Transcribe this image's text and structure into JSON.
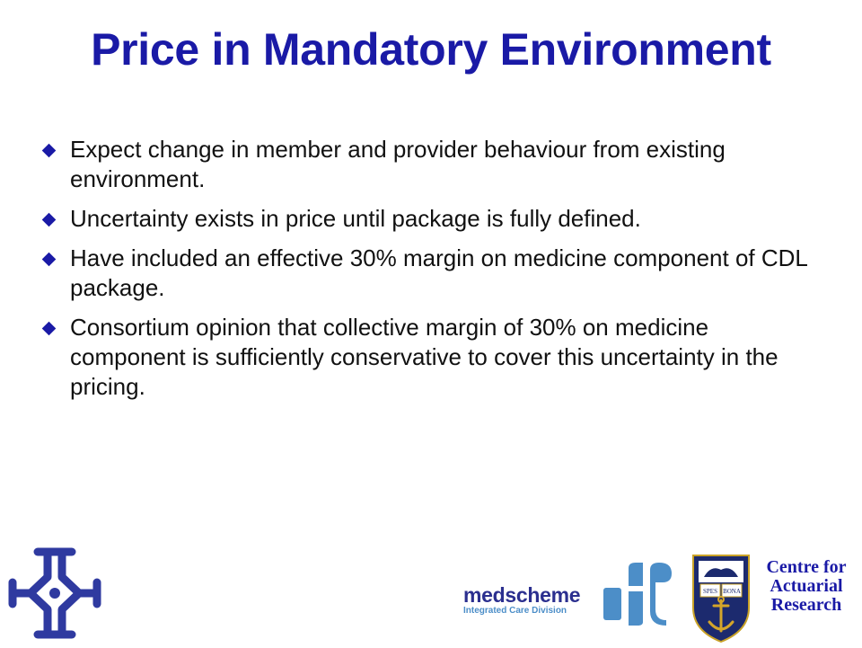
{
  "slide": {
    "title": "Price in Mandatory Environment",
    "bullets": [
      "Expect change in member and provider behaviour from existing environment.",
      "Uncertainty exists in price until package is fully defined.",
      "Have included an effective 30% margin on medicine component of CDL package.",
      "Consortium opinion that collective margin of 30% on medicine component is sufficiently conservative to cover this uncertainty in the pricing."
    ]
  },
  "footer": {
    "medscheme_name": "medscheme",
    "medscheme_division": "Integrated Care Division",
    "crest_motto_left": "SPES",
    "crest_motto_right": "BONA",
    "centre_lines": [
      "Centre for",
      "Actuarial",
      "Research"
    ]
  },
  "colors": {
    "title": "#1a1aa6",
    "bullet_marker": "#1a1aa6",
    "medscheme_blue": "#2b2f8f",
    "medscheme_light": "#4c8ec8"
  }
}
